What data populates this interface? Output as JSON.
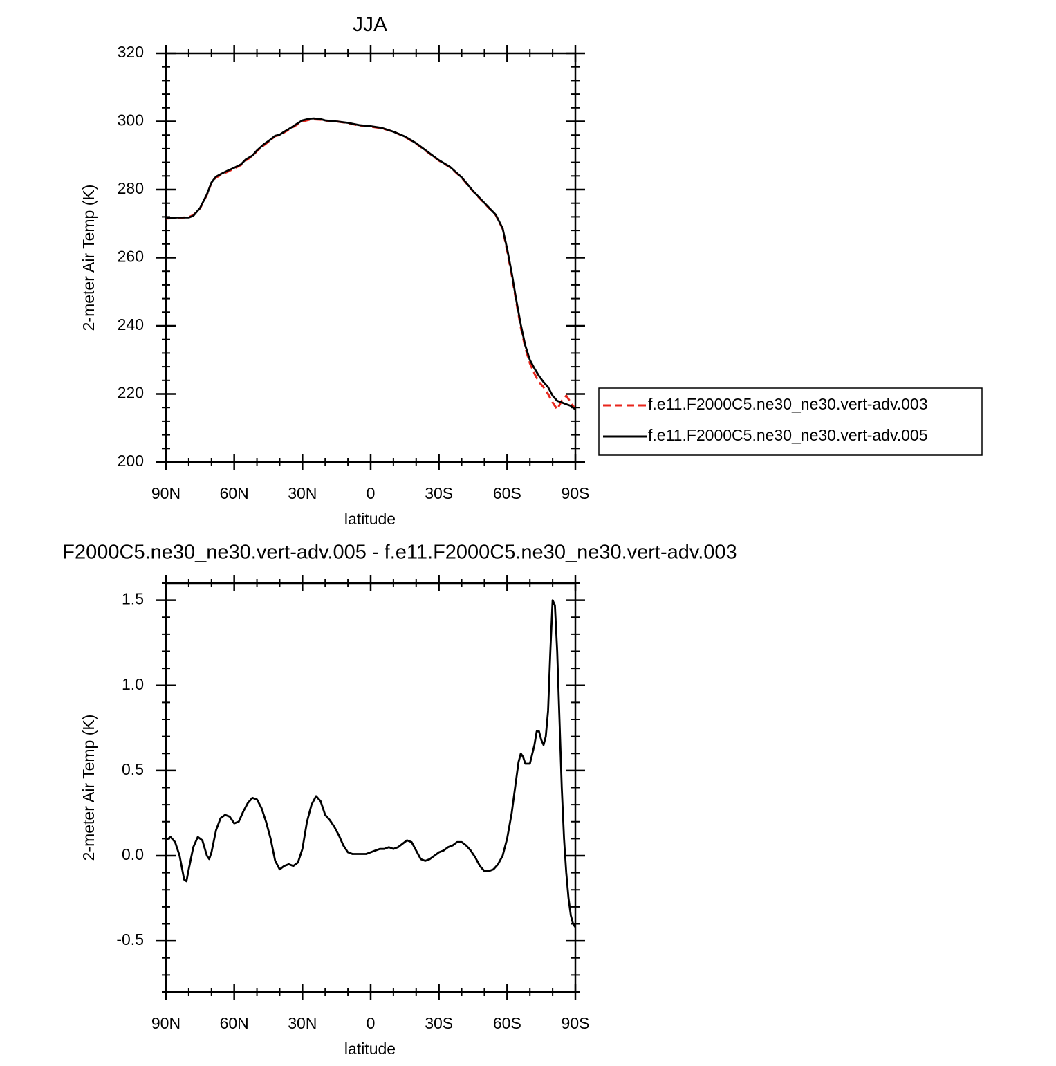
{
  "chart_data": [
    {
      "type": "line",
      "title": "JJA",
      "xlabel": "latitude",
      "ylabel": "2-meter Air Temp (K)",
      "xlim": [
        90,
        -90
      ],
      "ylim": [
        200,
        320
      ],
      "x_ticks": [
        90,
        60,
        30,
        0,
        -30,
        -60,
        -90
      ],
      "x_tick_labels": [
        "90N",
        "60N",
        "30N",
        "0",
        "30S",
        "60S",
        "90S"
      ],
      "y_ticks": [
        200,
        220,
        240,
        260,
        280,
        300,
        320
      ],
      "y_tick_labels": [
        "200",
        "220",
        "240",
        "260",
        "280",
        "300",
        "320"
      ],
      "grid": false,
      "legend_position": "right",
      "series": [
        {
          "name": "f.e11.F2000C5.ne30_ne30.vert-adv.003",
          "color": "#e8261c",
          "dash": "dashed",
          "x": [
            90,
            85,
            80,
            78,
            75,
            72,
            70,
            68,
            66,
            63,
            60,
            57,
            55,
            52,
            50,
            47,
            45,
            42,
            40,
            38,
            35,
            32,
            30,
            27,
            25,
            22,
            20,
            15,
            10,
            5,
            0,
            -5,
            -10,
            -15,
            -20,
            -25,
            -30,
            -35,
            -40,
            -45,
            -50,
            -55,
            -58,
            -60,
            -62,
            -64,
            -66,
            -68,
            -70,
            -72,
            -74,
            -76,
            -78,
            -80,
            -82,
            -84,
            -86,
            -88,
            -90
          ],
          "y": [
            271.5,
            271.7,
            271.9,
            272.5,
            274.5,
            278.5,
            282.0,
            283.5,
            284.3,
            285.2,
            286.2,
            287.2,
            288.5,
            289.8,
            291.3,
            293.0,
            294.0,
            295.7,
            296.0,
            296.8,
            298.0,
            299.2,
            300.0,
            300.5,
            300.6,
            300.5,
            300.2,
            300.0,
            299.5,
            298.8,
            298.5,
            298.0,
            297.0,
            295.5,
            293.5,
            291.0,
            288.5,
            286.5,
            283.5,
            279.5,
            276.0,
            272.5,
            268.5,
            262.0,
            255.0,
            247.0,
            239.5,
            233.5,
            229.0,
            226.0,
            223.5,
            222.0,
            220.0,
            217.5,
            215.5,
            218.0,
            219.5,
            217.5,
            215.5
          ]
        },
        {
          "name": "f.e11.F2000C5.ne30_ne30.vert-adv.005",
          "color": "#000000",
          "dash": "solid",
          "x": [
            90,
            85,
            80,
            78,
            75,
            72,
            70,
            68,
            66,
            63,
            60,
            57,
            55,
            52,
            50,
            47,
            45,
            42,
            40,
            38,
            35,
            32,
            30,
            27,
            25,
            22,
            20,
            15,
            10,
            5,
            0,
            -5,
            -10,
            -15,
            -20,
            -25,
            -30,
            -35,
            -40,
            -45,
            -50,
            -55,
            -58,
            -60,
            -62,
            -64,
            -66,
            -68,
            -70,
            -72,
            -74,
            -76,
            -78,
            -80,
            -82,
            -84,
            -86,
            -88,
            -90
          ],
          "y": [
            271.6,
            271.8,
            271.8,
            272.3,
            274.6,
            278.6,
            282.1,
            283.8,
            284.5,
            285.5,
            286.4,
            287.4,
            288.8,
            290.0,
            291.5,
            293.3,
            294.2,
            295.8,
            296.1,
            297.0,
            298.2,
            299.5,
            300.3,
            300.8,
            300.9,
            300.7,
            300.3,
            300.0,
            299.6,
            298.9,
            298.6,
            298.1,
            297.0,
            295.6,
            293.6,
            291.1,
            288.6,
            286.6,
            283.6,
            279.6,
            276.1,
            272.6,
            268.6,
            262.6,
            255.6,
            247.6,
            240.3,
            234.2,
            230.0,
            227.5,
            225.3,
            223.5,
            222.0,
            219.5,
            218.0,
            217.5,
            217.0,
            216.5,
            215.5
          ]
        }
      ]
    },
    {
      "type": "line",
      "title": "F2000C5.ne30_ne30.vert-adv.005 - f.e11.F2000C5.ne30_ne30.vert-adv.003",
      "xlabel": "latitude",
      "ylabel": "2-meter Air Temp (K)",
      "xlim": [
        90,
        -90
      ],
      "ylim": [
        -0.8,
        1.6
      ],
      "x_ticks": [
        90,
        60,
        30,
        0,
        -30,
        -60,
        -90
      ],
      "x_tick_labels": [
        "90N",
        "60N",
        "30N",
        "0",
        "30S",
        "60S",
        "90S"
      ],
      "y_ticks": [
        -0.5,
        0.0,
        0.5,
        1.0,
        1.5
      ],
      "y_tick_labels": [
        "-0.5",
        "0.0",
        "0.5",
        "1.0",
        "1.5"
      ],
      "grid": false,
      "series": [
        {
          "color": "#000000",
          "dash": "solid",
          "x": [
            90,
            88,
            86,
            84,
            82,
            81,
            80,
            78,
            76,
            74,
            72,
            71,
            70,
            68,
            66,
            64,
            62,
            60,
            58,
            56,
            54,
            52,
            50,
            48,
            46,
            44,
            42,
            40,
            38,
            36,
            34,
            32,
            30,
            28,
            26,
            24,
            22,
            20,
            18,
            16,
            14,
            12,
            10,
            8,
            6,
            4,
            2,
            0,
            -2,
            -4,
            -6,
            -8,
            -10,
            -12,
            -14,
            -16,
            -18,
            -20,
            -22,
            -24,
            -26,
            -28,
            -30,
            -32,
            -34,
            -36,
            -38,
            -40,
            -42,
            -44,
            -46,
            -48,
            -50,
            -52,
            -54,
            -56,
            -58,
            -60,
            -62,
            -64,
            -65,
            -66,
            -67,
            -68,
            -70,
            -72,
            -73,
            -74,
            -75,
            -76,
            -77,
            -78,
            -79,
            -80,
            -81,
            -82,
            -83,
            -84,
            -85,
            -86,
            -87,
            -88,
            -89,
            -90
          ],
          "y": [
            0.09,
            0.11,
            0.08,
            0.0,
            -0.14,
            -0.15,
            -0.08,
            0.05,
            0.11,
            0.09,
            0.0,
            -0.02,
            0.02,
            0.15,
            0.22,
            0.24,
            0.23,
            0.19,
            0.2,
            0.26,
            0.31,
            0.34,
            0.33,
            0.28,
            0.2,
            0.1,
            -0.03,
            -0.08,
            -0.06,
            -0.05,
            -0.06,
            -0.04,
            0.04,
            0.2,
            0.3,
            0.35,
            0.32,
            0.24,
            0.21,
            0.17,
            0.12,
            0.06,
            0.02,
            0.01,
            0.01,
            0.01,
            0.01,
            0.02,
            0.03,
            0.04,
            0.04,
            0.05,
            0.04,
            0.05,
            0.07,
            0.09,
            0.08,
            0.03,
            -0.02,
            -0.03,
            -0.02,
            0.0,
            0.02,
            0.03,
            0.05,
            0.06,
            0.08,
            0.08,
            0.06,
            0.03,
            -0.01,
            -0.06,
            -0.09,
            -0.09,
            -0.08,
            -0.05,
            0.0,
            0.1,
            0.25,
            0.45,
            0.55,
            0.6,
            0.58,
            0.54,
            0.54,
            0.65,
            0.73,
            0.73,
            0.68,
            0.65,
            0.7,
            0.85,
            1.2,
            1.5,
            1.47,
            1.2,
            0.8,
            0.4,
            0.1,
            -0.1,
            -0.25,
            -0.35,
            -0.4,
            -0.42
          ]
        }
      ]
    }
  ]
}
